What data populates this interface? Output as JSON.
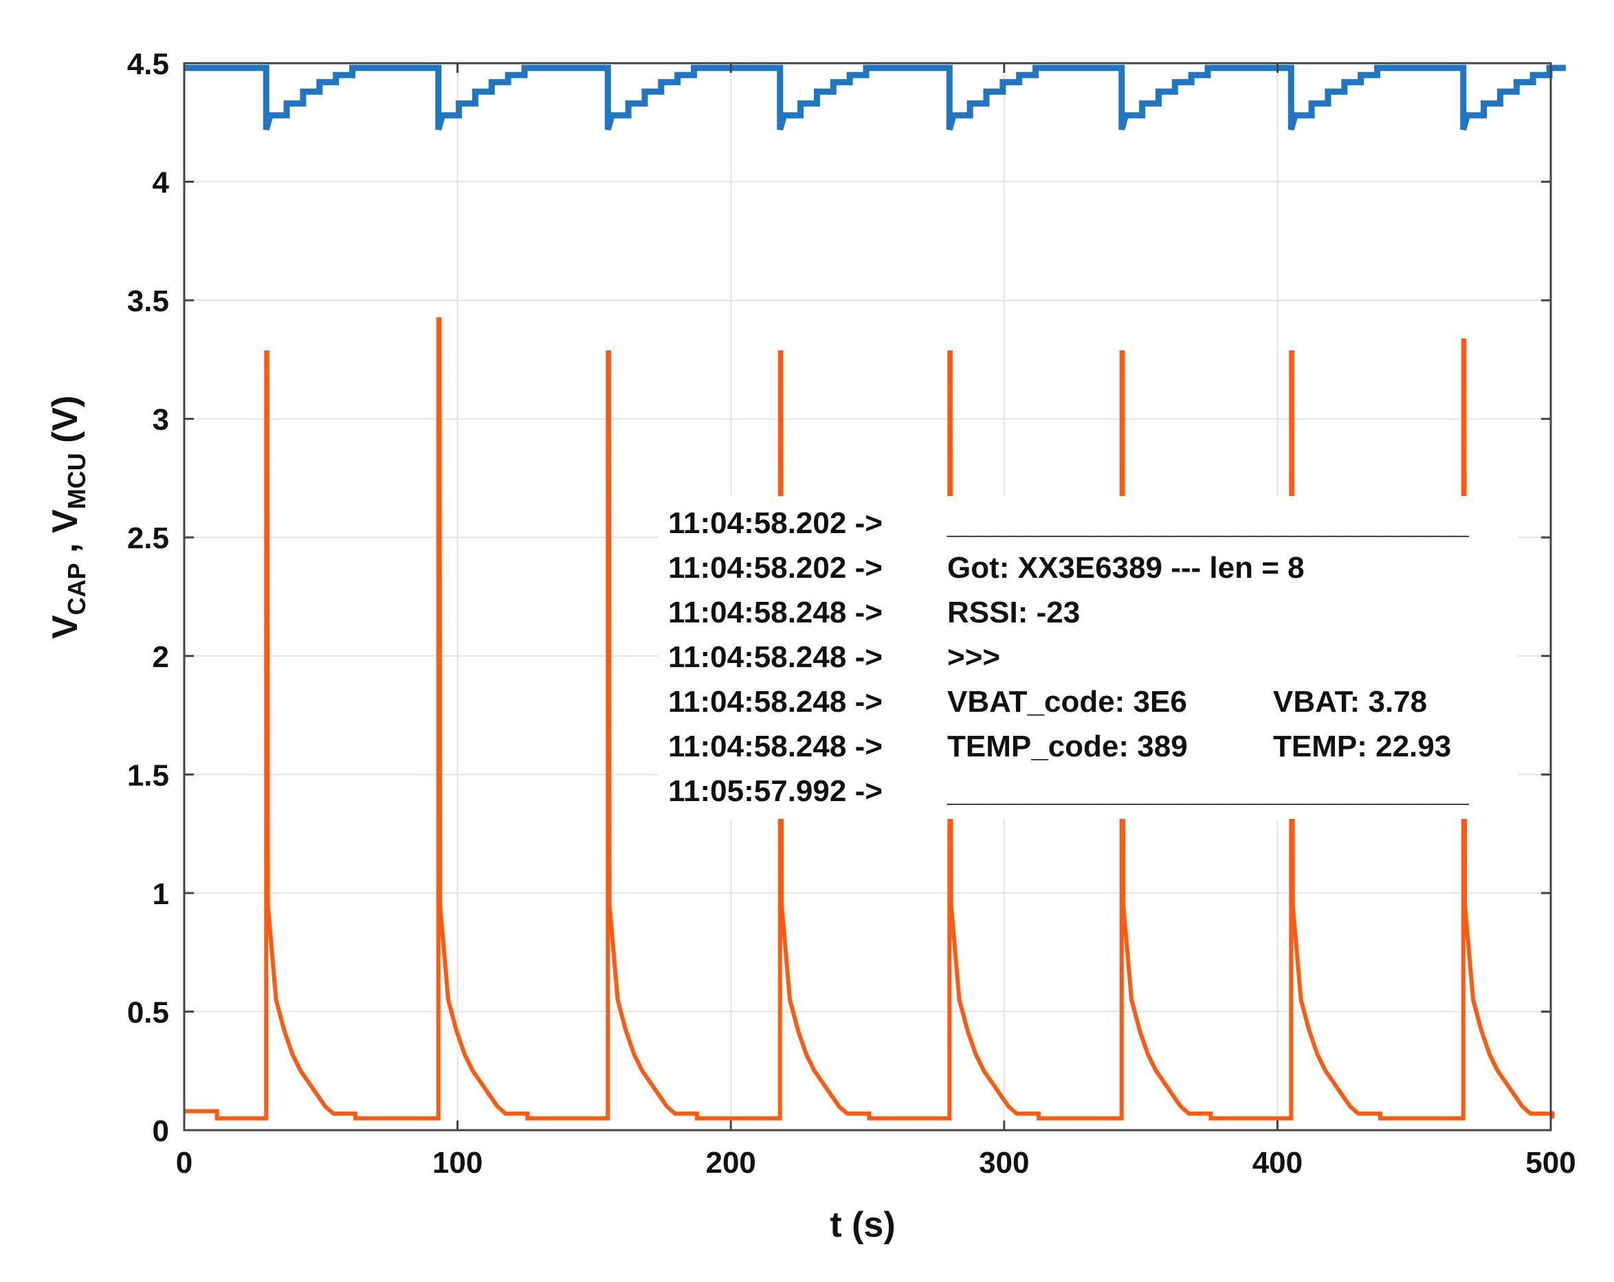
{
  "chart_data": {
    "type": "line",
    "xlabel": "t (s)",
    "ylabel": {
      "v1": "V",
      "v1_sub": "CAP",
      "sep": " , ",
      "v2": "V",
      "v2_sub": "MCU",
      "unit": " (V)"
    },
    "xlim": [
      0,
      500
    ],
    "ylim": [
      0,
      4.5
    ],
    "xticks": [
      0,
      100,
      200,
      300,
      400,
      500
    ],
    "yticks": [
      0,
      0.5,
      1,
      1.5,
      2,
      2.5,
      3,
      3.5,
      4,
      4.5
    ],
    "ytick_labels": [
      "0",
      "0.5",
      "1",
      "1.5",
      "2",
      "2.5",
      "3",
      "3.5",
      "4",
      "4.5"
    ],
    "grid": true,
    "series": [
      {
        "name": "V_CAP",
        "color": "#1f77c4",
        "baseline": 4.48,
        "events": [
          30,
          93,
          155,
          218,
          280,
          343,
          405,
          468
        ],
        "dip_min": 4.22,
        "step_levels": [
          4.28,
          4.33,
          4.38,
          4.42,
          4.45,
          4.48
        ],
        "step_duration": 6
      },
      {
        "name": "V_MCU",
        "color": "#ff5a10",
        "baseline": 0.05,
        "events": [
          30,
          93,
          155,
          218,
          280,
          343,
          405,
          468
        ],
        "peaks": [
          3.28,
          3.42,
          3.28,
          3.28,
          3.28,
          3.28,
          3.28,
          3.33
        ],
        "decay_to": 0.95,
        "tail_levels": [
          0.55,
          0.42,
          0.32,
          0.25,
          0.2,
          0.15,
          0.1,
          0.07
        ],
        "tail_step": 3
      }
    ],
    "annotation_lines": [
      {
        "time": "11:04:58.202 ->",
        "msg": "_______________________________",
        "extra": ""
      },
      {
        "time": "11:04:58.202 ->",
        "msg": "Got: XX3E6389 --- len = 8",
        "extra": ""
      },
      {
        "time": "11:04:58.248 ->",
        "msg": "RSSI: -23",
        "extra": ""
      },
      {
        "time": "11:04:58.248 ->",
        "msg": ">>>",
        "extra": ""
      },
      {
        "time": "11:04:58.248 ->",
        "msg": "VBAT_code: 3E6",
        "extra": "VBAT: 3.78"
      },
      {
        "time": "11:04:58.248 ->",
        "msg": "TEMP_code: 389",
        "extra": "TEMP: 22.93"
      },
      {
        "time": "11:05:57.992 ->",
        "msg": "_______________________________",
        "extra": ""
      }
    ]
  }
}
